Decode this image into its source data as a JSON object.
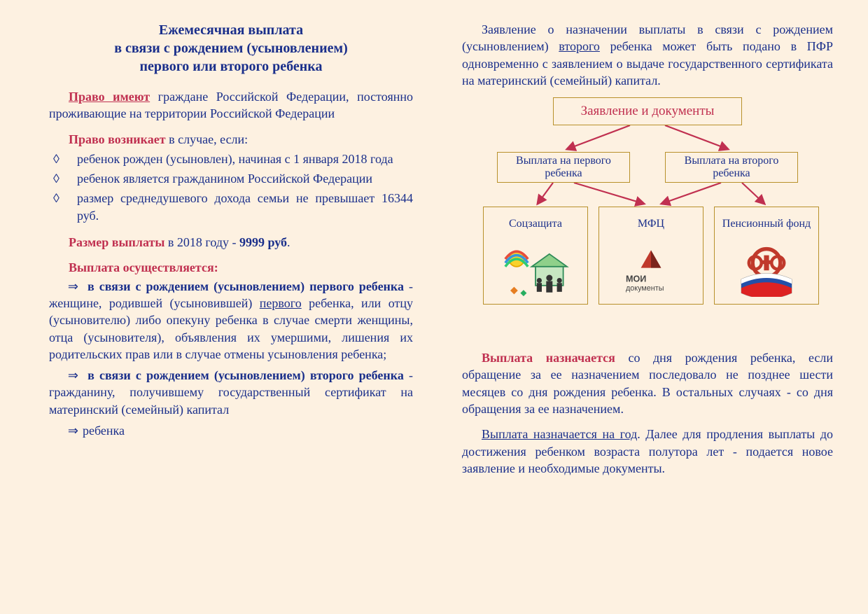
{
  "background_color": "#fdf1e1",
  "text_color": "#1a2f8b",
  "accent_color": "#c03050",
  "box_border_color": "#b8902a",
  "arrow_color": "#c03050",
  "fontsize_body": 18,
  "title": "Ежемесячная выплата\nв связи с рождением (усыновлением)\nпервого или второго ребенка",
  "left": {
    "pravo_imeyut_label": "Право имеют",
    "pravo_imeyut_text": " граждане Российской Федерации, постоянно проживающие на территории Российской Федерации",
    "pravo_voznikaet_label": "Право возникает",
    "pravo_voznikaet_tail": " в случае, если:",
    "bullets": [
      "ребенок рожден (усыновлен), начиная с 1 января 2018 года",
      "ребенок является гражданином Российской Федерации",
      "размер среднедушевого дохода семьи не превышает 16344 руб."
    ],
    "razmer_label": "Размер выплаты",
    "razmer_mid": " в 2018 году - ",
    "razmer_amount": "9999 руб",
    "razmer_dot": ".",
    "vyplata_label": "Выплата осуществляется:",
    "p1_bold_lead": "в связи с рождением (усыновлением) первого ребенка",
    "p1_dash": " - женщине, родившей (усыновившей) ",
    "p1_under": "первого",
    "p1_rest": " ребенка, или отцу (усыновителю) либо опекуну ребенка в случае смерти женщины, отца (усыновителя), объявления их умершими, лишения их родительских прав или в случае отмены усыновления ребенка;",
    "p2_bold_lead": "в связи с рождением (усыновлением) второго ребенка",
    "p2_rest": " - гражданину, получившему государственный сертификат на материнский (семейный) капитал",
    "p3": "ребенка"
  },
  "right": {
    "intro_pre": "Заявление о назначении выплаты в связи с рождением (усыновлением) ",
    "intro_under": "второго",
    "intro_post": " ребенка может быть подано в ПФР одновременно с заявлением о выдаче государственного сертификата на материнский (семейный) капитал.",
    "flow": {
      "top": "Заявление и документы",
      "mid_left": "Выплата на первого ребенка",
      "mid_right": "Выплата на второго ребенка",
      "bot1": "Соцзащита",
      "bot2": "МФЦ",
      "bot3": "Пенсионный фонд"
    },
    "para2_lead": "Выплата назначается",
    "para2_rest": " со дня рождения ребенка, если обращение за ее назначением последовало не позднее шести месяцев со дня рождения ребенка. В остальных случаях - со дня обращения за ее назначением.",
    "para3_lead": "Выплата назначается на год",
    "para3_rest": ". Далее для продления выплаты до достижения ребенком возраста полутора лет - подается новое заявление и необходимые документы."
  }
}
